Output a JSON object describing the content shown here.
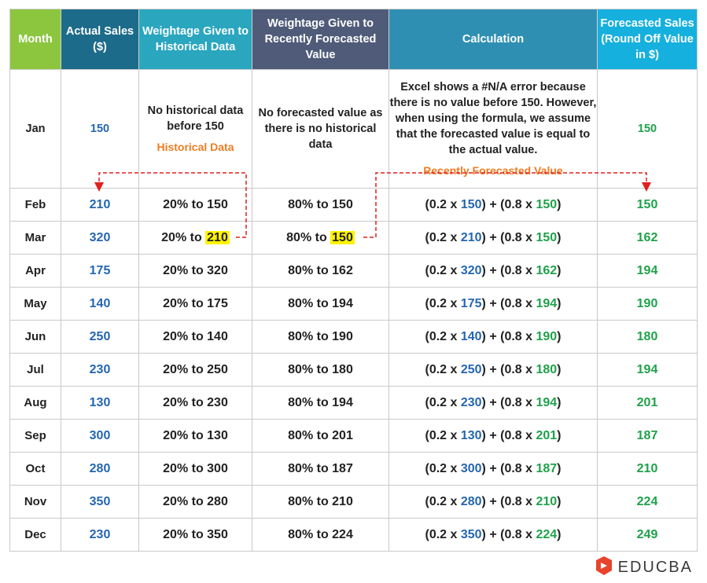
{
  "headers": {
    "month": "Month",
    "actual": "Actual Sales ($)",
    "historical": "Weightage Given to Historical Data",
    "recent": "Weightage Given to Recently Forecasted Value",
    "calculation": "Calculation",
    "forecast": "Forecasted Sales (Round Off Value in $)"
  },
  "jan": {
    "month": "Jan",
    "actual": "150",
    "historical_text": "No historical data before 150",
    "historical_label": "Historical Data",
    "recent_text": "No forecasted value as there is no historical data",
    "calculation_text": "Excel shows a #N/A error because there is no value before 150. However, when using the formula, we assume that the forecasted value is equal to the actual value.",
    "recent_label": "Recently Forecasted Value",
    "forecast": "150"
  },
  "rows": [
    {
      "month": "Feb",
      "actual": "210",
      "hist_prefix": "20% to ",
      "hist_value": "150",
      "recent_prefix": "80% to ",
      "recent_value": "150",
      "calc_a": "(0.2 x ",
      "calc_b": "150",
      "calc_c": ") + (0.8 x ",
      "calc_d": "150",
      "calc_e": ")",
      "forecast": "150"
    },
    {
      "month": "Mar",
      "actual": "320",
      "hist_prefix": "20% to ",
      "hist_value": "210",
      "recent_prefix": "80% to ",
      "recent_value": "150",
      "calc_a": "(0.2 x ",
      "calc_b": "210",
      "calc_c": ") + (0.8 x ",
      "calc_d": "150",
      "calc_e": ")",
      "forecast": "162"
    },
    {
      "month": "Apr",
      "actual": "175",
      "hist_prefix": "20% to ",
      "hist_value": "320",
      "recent_prefix": "80% to ",
      "recent_value": "162",
      "calc_a": "(0.2 x ",
      "calc_b": "320",
      "calc_c": ") + (0.8 x ",
      "calc_d": "162",
      "calc_e": ")",
      "forecast": "194"
    },
    {
      "month": "May",
      "actual": "140",
      "hist_prefix": "20% to ",
      "hist_value": "175",
      "recent_prefix": "80% to ",
      "recent_value": "194",
      "calc_a": "(0.2 x ",
      "calc_b": "175",
      "calc_c": ") + (0.8 x ",
      "calc_d": "194",
      "calc_e": ")",
      "forecast": "190"
    },
    {
      "month": "Jun",
      "actual": "250",
      "hist_prefix": "20% to ",
      "hist_value": "140",
      "recent_prefix": "80% to ",
      "recent_value": "190",
      "calc_a": "(0.2 x ",
      "calc_b": "140",
      "calc_c": ") + (0.8 x ",
      "calc_d": "190",
      "calc_e": ")",
      "forecast": "180"
    },
    {
      "month": "Jul",
      "actual": "230",
      "hist_prefix": "20% to ",
      "hist_value": "250",
      "recent_prefix": "80% to ",
      "recent_value": "180",
      "calc_a": "(0.2 x ",
      "calc_b": "250",
      "calc_c": ") + (0.8 x ",
      "calc_d": "180",
      "calc_e": ")",
      "forecast": "194"
    },
    {
      "month": "Aug",
      "actual": "130",
      "hist_prefix": "20% to ",
      "hist_value": "230",
      "recent_prefix": "80% to ",
      "recent_value": "194",
      "calc_a": "(0.2 x ",
      "calc_b": "230",
      "calc_c": ") + (0.8 x ",
      "calc_d": "194",
      "calc_e": ")",
      "forecast": "201"
    },
    {
      "month": "Sep",
      "actual": "300",
      "hist_prefix": "20% to ",
      "hist_value": "130",
      "recent_prefix": "80% to ",
      "recent_value": "201",
      "calc_a": "(0.2 x ",
      "calc_b": "130",
      "calc_c": ") + (0.8 x ",
      "calc_d": "201",
      "calc_e": ")",
      "forecast": "187"
    },
    {
      "month": "Oct",
      "actual": "280",
      "hist_prefix": "20% to ",
      "hist_value": "300",
      "recent_prefix": "80% to ",
      "recent_value": "187",
      "calc_a": "(0.2 x ",
      "calc_b": "300",
      "calc_c": ") + (0.8 x ",
      "calc_d": "187",
      "calc_e": ")",
      "forecast": "210"
    },
    {
      "month": "Nov",
      "actual": "350",
      "hist_prefix": "20% to ",
      "hist_value": "280",
      "recent_prefix": "80% to ",
      "recent_value": "210",
      "calc_a": "(0.2 x ",
      "calc_b": "280",
      "calc_c": ") + (0.8 x ",
      "calc_d": "210",
      "calc_e": ")",
      "forecast": "224"
    },
    {
      "month": "Dec",
      "actual": "230",
      "hist_prefix": "20% to ",
      "hist_value": "350",
      "recent_prefix": "80% to ",
      "recent_value": "224",
      "calc_a": "(0.2 x ",
      "calc_b": "350",
      "calc_c": ") + (0.8 x ",
      "calc_d": "224",
      "calc_e": ")",
      "forecast": "249"
    }
  ],
  "logo": {
    "text": "EDUCBA",
    "icon": "educba-logo-icon"
  },
  "colors": {
    "actual_value": "#2466b0",
    "forecast_value": "#1fa14a",
    "annotation": "#ef7d22",
    "highlight": "#fff200",
    "arrow": "#e0201f"
  }
}
